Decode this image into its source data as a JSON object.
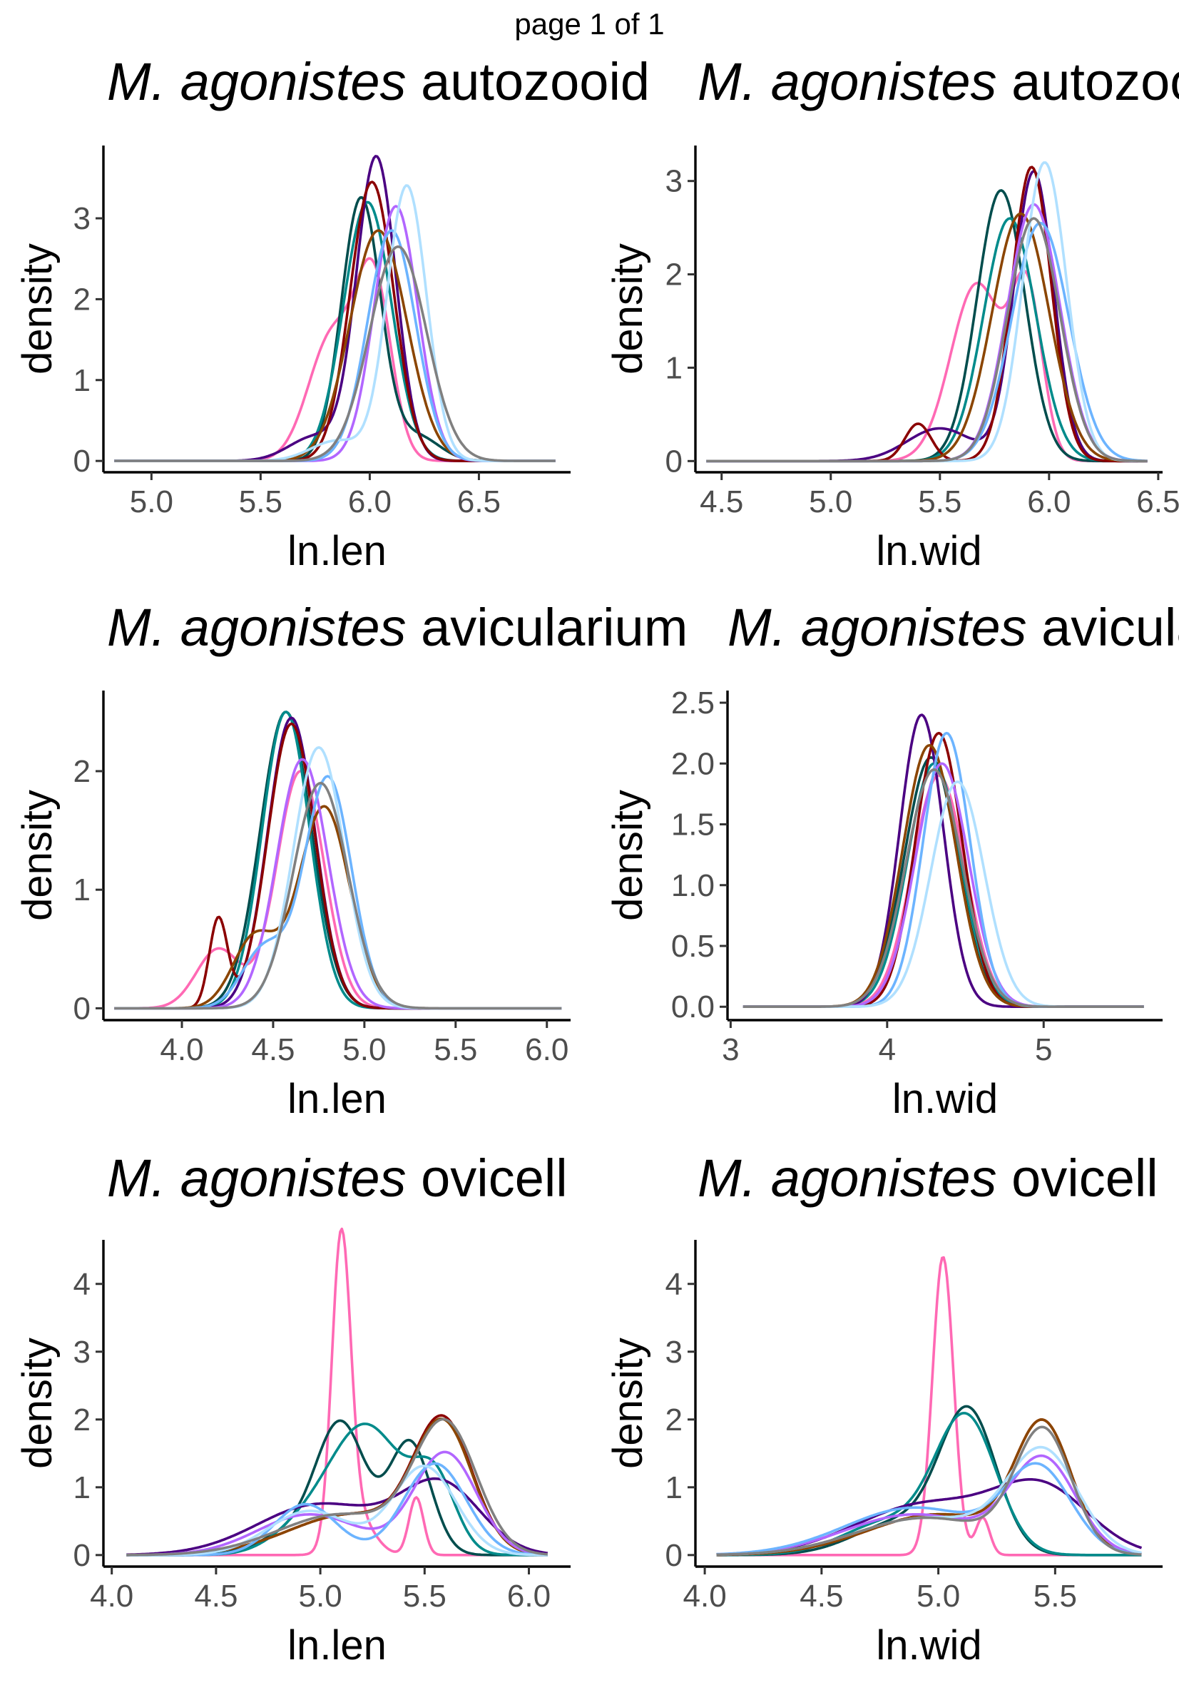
{
  "page_header": "page 1 of 1",
  "chart_data": [
    {
      "type": "line",
      "title": {
        "species": "M. agonistes",
        "part": "autozooid"
      },
      "xlabel": "ln.len",
      "ylabel": "density",
      "xlim": [
        4.78,
        6.92
      ],
      "ylim": [
        -0.14,
        3.9
      ],
      "xticks": [
        5.0,
        5.5,
        6.0,
        6.5
      ],
      "xtick_labels": [
        "5.0",
        "5.5",
        "6.0",
        "6.5"
      ],
      "yticks": [
        0,
        1,
        2,
        3
      ],
      "ytick_labels": [
        "0",
        "1",
        "2",
        "3"
      ],
      "grid": false,
      "legend": "none",
      "x_range": [
        4.83,
        6.85
      ],
      "series": [
        {
          "color": "#FF69B4",
          "peaks": [
            [
              5.83,
              1.55,
              0.11
            ],
            [
              6.02,
              2.1,
              0.08
            ]
          ]
        },
        {
          "color": "#004D4D",
          "peaks": [
            [
              5.96,
              3.25,
              0.09
            ],
            [
              6.22,
              0.3,
              0.1
            ]
          ]
        },
        {
          "color": "#008B8B",
          "peaks": [
            [
              5.99,
              3.2,
              0.11
            ]
          ]
        },
        {
          "color": "#4B0082",
          "peaks": [
            [
              6.03,
              3.75,
              0.09
            ],
            [
              5.75,
              0.3,
              0.12
            ]
          ]
        },
        {
          "color": "#8B0000",
          "peaks": [
            [
              6.01,
              3.45,
              0.1
            ]
          ]
        },
        {
          "color": "#8B4500",
          "peaks": [
            [
              6.04,
              2.85,
              0.13
            ]
          ]
        },
        {
          "color": "#B266FF",
          "peaks": [
            [
              6.12,
              3.15,
              0.1
            ]
          ]
        },
        {
          "color": "#6CB4FF",
          "peaks": [
            [
              6.1,
              2.85,
              0.11
            ]
          ]
        },
        {
          "color": "#B0E0FF",
          "peaks": [
            [
              6.17,
              3.4,
              0.09
            ],
            [
              5.85,
              0.25,
              0.12
            ]
          ]
        },
        {
          "color": "#808080",
          "peaks": [
            [
              6.13,
              2.65,
              0.13
            ]
          ]
        }
      ]
    },
    {
      "type": "line",
      "title": {
        "species": "M. agonistes",
        "part": "autozooid"
      },
      "xlabel": "ln.wid",
      "ylabel": "density",
      "xlim": [
        4.38,
        6.52
      ],
      "ylim": [
        -0.12,
        3.38
      ],
      "xticks": [
        4.5,
        5.0,
        5.5,
        6.0,
        6.5
      ],
      "xtick_labels": [
        "4.5",
        "5.0",
        "5.5",
        "6.0",
        "6.5"
      ],
      "yticks": [
        0,
        1,
        2,
        3
      ],
      "ytick_labels": [
        "0",
        "1",
        "2",
        "3"
      ],
      "grid": false,
      "legend": "none",
      "x_range": [
        4.43,
        6.45
      ],
      "series": [
        {
          "color": "#FF69B4",
          "peaks": [
            [
              5.67,
              1.9,
              0.12
            ],
            [
              5.9,
              1.7,
              0.07
            ]
          ]
        },
        {
          "color": "#004D4D",
          "peaks": [
            [
              5.78,
              2.9,
              0.11
            ]
          ]
        },
        {
          "color": "#008B8B",
          "peaks": [
            [
              5.82,
              2.6,
              0.12
            ]
          ]
        },
        {
          "color": "#4B0082",
          "peaks": [
            [
              5.93,
              3.1,
              0.09
            ],
            [
              5.5,
              0.35,
              0.15
            ]
          ]
        },
        {
          "color": "#8B0000",
          "peaks": [
            [
              5.92,
              3.15,
              0.09
            ],
            [
              5.4,
              0.4,
              0.06
            ]
          ]
        },
        {
          "color": "#8B4500",
          "peaks": [
            [
              5.87,
              2.65,
              0.13
            ]
          ]
        },
        {
          "color": "#B266FF",
          "peaks": [
            [
              5.93,
              2.75,
              0.12
            ]
          ]
        },
        {
          "color": "#6CB4FF",
          "peaks": [
            [
              5.96,
              2.55,
              0.13
            ]
          ]
        },
        {
          "color": "#B0E0FF",
          "peaks": [
            [
              5.98,
              3.2,
              0.1
            ]
          ]
        },
        {
          "color": "#808080",
          "peaks": [
            [
              5.93,
              2.6,
              0.12
            ]
          ]
        }
      ]
    },
    {
      "type": "line",
      "title": {
        "species": "M. agonistes",
        "part": "avicularium"
      },
      "xlabel": "ln.len",
      "ylabel": "density",
      "xlim": [
        3.57,
        6.13
      ],
      "ylim": [
        -0.1,
        2.68
      ],
      "xticks": [
        4.0,
        4.5,
        5.0,
        5.5,
        6.0
      ],
      "xtick_labels": [
        "4.0",
        "4.5",
        "5.0",
        "5.5",
        "6.0"
      ],
      "yticks": [
        0,
        1,
        2
      ],
      "ytick_labels": [
        "0",
        "1",
        "2"
      ],
      "grid": false,
      "legend": "none",
      "x_range": [
        3.63,
        6.08
      ],
      "series": [
        {
          "color": "#FF69B4",
          "peaks": [
            [
              4.65,
              2.0,
              0.13
            ],
            [
              4.2,
              0.5,
              0.12
            ]
          ]
        },
        {
          "color": "#004D4D",
          "peaks": [
            [
              4.57,
              2.5,
              0.14
            ]
          ]
        },
        {
          "color": "#008B8B",
          "peaks": [
            [
              4.57,
              2.5,
              0.13
            ]
          ]
        },
        {
          "color": "#4B0082",
          "peaks": [
            [
              4.6,
              2.45,
              0.13
            ]
          ]
        },
        {
          "color": "#8B0000",
          "peaks": [
            [
              4.6,
              2.4,
              0.13
            ],
            [
              4.2,
              0.75,
              0.05
            ]
          ]
        },
        {
          "color": "#8B4500",
          "peaks": [
            [
              4.78,
              1.7,
              0.14
            ],
            [
              4.4,
              0.6,
              0.12
            ]
          ]
        },
        {
          "color": "#B266FF",
          "peaks": [
            [
              4.66,
              2.1,
              0.14
            ]
          ]
        },
        {
          "color": "#6CB4FF",
          "peaks": [
            [
              4.8,
              1.95,
              0.13
            ],
            [
              4.45,
              0.5,
              0.12
            ]
          ]
        },
        {
          "color": "#B0E0FF",
          "peaks": [
            [
              4.75,
              2.2,
              0.14
            ]
          ]
        },
        {
          "color": "#808080",
          "peaks": [
            [
              4.76,
              1.9,
              0.15
            ]
          ]
        }
      ]
    },
    {
      "type": "line",
      "title": {
        "species": "M. agonistes",
        "part": "avicularium"
      },
      "xlabel": "ln.wid",
      "ylabel": "density",
      "xlim": [
        2.98,
        5.76
      ],
      "ylim": [
        -0.11,
        2.6
      ],
      "xticks": [
        3,
        4,
        5
      ],
      "xtick_labels": [
        "3",
        "4",
        "5"
      ],
      "yticks": [
        0.0,
        0.5,
        1.0,
        1.5,
        2.0,
        2.5
      ],
      "ytick_labels": [
        "0.0",
        "0.5",
        "1.0",
        "1.5",
        "2.0",
        "2.5"
      ],
      "grid": false,
      "legend": "none",
      "x_range": [
        3.08,
        5.64
      ],
      "series": [
        {
          "color": "#FF69B4",
          "peaks": [
            [
              4.33,
              1.9,
              0.17
            ]
          ]
        },
        {
          "color": "#004D4D",
          "peaks": [
            [
              4.28,
              2.05,
              0.17
            ]
          ]
        },
        {
          "color": "#008B8B",
          "peaks": [
            [
              4.3,
              2.0,
              0.17
            ]
          ]
        },
        {
          "color": "#4B0082",
          "peaks": [
            [
              4.22,
              2.4,
              0.14
            ]
          ]
        },
        {
          "color": "#8B0000",
          "peaks": [
            [
              4.33,
              2.25,
              0.15
            ]
          ]
        },
        {
          "color": "#8B4500",
          "peaks": [
            [
              4.27,
              2.15,
              0.17
            ]
          ]
        },
        {
          "color": "#B266FF",
          "peaks": [
            [
              4.35,
              2.0,
              0.17
            ]
          ]
        },
        {
          "color": "#6CB4FF",
          "peaks": [
            [
              4.38,
              2.25,
              0.15
            ]
          ]
        },
        {
          "color": "#B0E0FF",
          "peaks": [
            [
              4.45,
              1.85,
              0.17
            ]
          ]
        },
        {
          "color": "#808080",
          "peaks": [
            [
              4.3,
              1.95,
              0.18
            ]
          ]
        }
      ]
    },
    {
      "type": "line",
      "title": {
        "species": "M. agonistes",
        "part": "ovicell"
      },
      "xlabel": "ln.len",
      "ylabel": "density",
      "xlim": [
        3.96,
        6.2
      ],
      "ylim": [
        -0.17,
        4.65
      ],
      "xticks": [
        4.0,
        4.5,
        5.0,
        5.5,
        6.0
      ],
      "xtick_labels": [
        "4.0",
        "4.5",
        "5.0",
        "5.5",
        "6.0"
      ],
      "yticks": [
        0,
        1,
        2,
        3,
        4
      ],
      "ytick_labels": [
        "0",
        "1",
        "2",
        "3",
        "4"
      ],
      "grid": false,
      "legend": "none",
      "x_range": [
        4.07,
        6.09
      ],
      "series": [
        {
          "color": "#FF69B4",
          "peaks": [
            [
              5.1,
              4.4,
              0.045
            ],
            [
              5.17,
              0.6,
              0.08
            ],
            [
              5.46,
              0.85,
              0.035
            ]
          ]
        },
        {
          "color": "#004D4D",
          "peaks": [
            [
              5.1,
              1.9,
              0.12
            ],
            [
              5.43,
              1.65,
              0.1
            ],
            [
              4.85,
              0.3,
              0.15
            ]
          ]
        },
        {
          "color": "#008B8B",
          "peaks": [
            [
              5.22,
              1.9,
              0.18
            ],
            [
              5.55,
              1.0,
              0.1
            ],
            [
              4.9,
              0.3,
              0.15
            ]
          ]
        },
        {
          "color": "#4B0082",
          "peaks": [
            [
              5.58,
              1.0,
              0.19
            ],
            [
              5.0,
              0.75,
              0.3
            ]
          ]
        },
        {
          "color": "#8B0000",
          "peaks": [
            [
              5.59,
              1.85,
              0.14
            ],
            [
              5.15,
              0.6,
              0.3
            ]
          ]
        },
        {
          "color": "#8B4500",
          "peaks": [
            [
              5.59,
              1.8,
              0.14
            ],
            [
              5.15,
              0.6,
              0.3
            ]
          ]
        },
        {
          "color": "#B266FF",
          "peaks": [
            [
              5.6,
              1.5,
              0.15
            ],
            [
              4.95,
              0.6,
              0.25
            ]
          ]
        },
        {
          "color": "#6CB4FF",
          "peaks": [
            [
              5.55,
              1.35,
              0.15
            ],
            [
              4.93,
              0.75,
              0.15
            ]
          ]
        },
        {
          "color": "#B0E0FF",
          "peaks": [
            [
              5.5,
              1.3,
              0.15
            ],
            [
              4.95,
              0.65,
              0.2
            ]
          ]
        },
        {
          "color": "#808080",
          "peaks": [
            [
              5.6,
              1.85,
              0.15
            ],
            [
              5.1,
              0.6,
              0.3
            ]
          ]
        }
      ]
    },
    {
      "type": "line",
      "title": {
        "species": "M. agonistes",
        "part": "ovicell"
      },
      "xlabel": "ln.wid",
      "ylabel": "density",
      "xlim": [
        3.96,
        5.96
      ],
      "ylim": [
        -0.17,
        4.65
      ],
      "xticks": [
        4.0,
        4.5,
        5.0,
        5.5
      ],
      "xtick_labels": [
        "4.0",
        "4.5",
        "5.0",
        "5.5"
      ],
      "yticks": [
        0,
        1,
        2,
        3,
        4
      ],
      "ytick_labels": [
        "0",
        "1",
        "2",
        "3",
        "4"
      ],
      "grid": false,
      "legend": "none",
      "x_range": [
        4.05,
        5.87
      ],
      "series": [
        {
          "color": "#FF69B4",
          "peaks": [
            [
              5.02,
              4.4,
              0.045
            ],
            [
              5.19,
              0.55,
              0.03
            ]
          ]
        },
        {
          "color": "#004D4D",
          "peaks": [
            [
              5.13,
              2.0,
              0.12
            ],
            [
              4.85,
              0.5,
              0.2
            ]
          ]
        },
        {
          "color": "#008B8B",
          "peaks": [
            [
              5.12,
              1.95,
              0.13
            ],
            [
              4.8,
              0.5,
              0.2
            ]
          ]
        },
        {
          "color": "#4B0082",
          "peaks": [
            [
              5.45,
              0.9,
              0.2
            ],
            [
              4.95,
              0.75,
              0.3
            ]
          ]
        },
        {
          "color": "#8B0000",
          "peaks": [
            [
              5.45,
              1.8,
              0.12
            ],
            [
              5.0,
              0.6,
              0.3
            ]
          ]
        },
        {
          "color": "#8B4500",
          "peaks": [
            [
              5.45,
              1.8,
              0.12
            ],
            [
              5.0,
              0.6,
              0.3
            ]
          ]
        },
        {
          "color": "#B266FF",
          "peaks": [
            [
              5.45,
              1.35,
              0.14
            ],
            [
              4.9,
              0.6,
              0.3
            ]
          ]
        },
        {
          "color": "#6CB4FF",
          "peaks": [
            [
              5.43,
              1.2,
              0.14
            ],
            [
              4.9,
              0.7,
              0.3
            ]
          ]
        },
        {
          "color": "#B0E0FF",
          "peaks": [
            [
              5.45,
              1.45,
              0.15
            ],
            [
              4.95,
              0.55,
              0.3
            ]
          ]
        },
        {
          "color": "#808080",
          "peaks": [
            [
              5.45,
              1.75,
              0.12
            ],
            [
              4.95,
              0.55,
              0.3
            ]
          ]
        }
      ]
    }
  ]
}
